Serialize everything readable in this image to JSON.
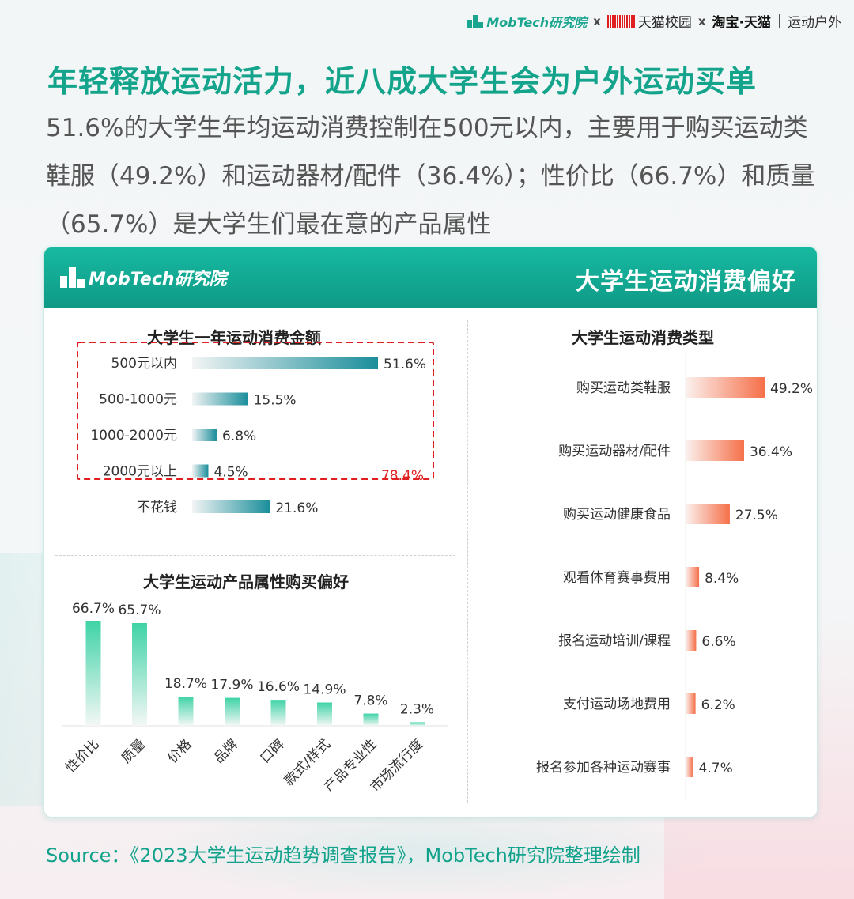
{
  "top_bar": {
    "mobtech": "MobTech研究院",
    "x1": "x",
    "tmall_campus": "天猫校园",
    "x2": "x",
    "taobao_tmall": "淘宝·天猫",
    "outdoor": "运动户外"
  },
  "title": "年轻释放运动活力，近八成大学生会为户外运动买单",
  "subtitle": "51.6%的大学生年均运动消费控制在500元以内，主要用于购买运动类鞋服（49.2%）和运动器材/配件（36.4%）；性价比（66.7%）和质量（65.7%）是大学生们最在意的产品属性",
  "card": {
    "logo": "MobTech研究院",
    "title": "大学生运动消费偏好"
  },
  "colors": {
    "teal": "#1a8e9b",
    "green": "#3fd3a6",
    "orange": "#f5704a",
    "red_highlight": "#e02020",
    "title_green": "#14a48b"
  },
  "chart_data": [
    {
      "type": "bar",
      "orientation": "horizontal",
      "title": "大学生一年运动消费金额",
      "categories": [
        "500元以内",
        "500-1000元",
        "1000-2000元",
        "2000元以上",
        "不花钱"
      ],
      "values": [
        51.6,
        15.5,
        6.8,
        4.5,
        21.6
      ],
      "value_labels": [
        "51.6%",
        "15.5%",
        "6.8%",
        "4.5%",
        "21.6%"
      ],
      "annotation": "78.4%",
      "xlim": [
        0,
        55
      ]
    },
    {
      "type": "bar",
      "orientation": "vertical",
      "title": "大学生运动产品属性购买偏好",
      "categories": [
        "性价比",
        "质量",
        "价格",
        "品牌",
        "口碑",
        "款式/样式",
        "产品专业性",
        "市场流行度"
      ],
      "values": [
        66.7,
        65.7,
        18.7,
        17.9,
        16.6,
        14.9,
        7.8,
        2.3
      ],
      "value_labels": [
        "66.7%",
        "65.7%",
        "18.7%",
        "17.9%",
        "16.6%",
        "14.9%",
        "7.8%",
        "2.3%"
      ],
      "ylim": [
        0,
        70
      ]
    },
    {
      "type": "bar",
      "orientation": "horizontal",
      "title": "大学生运动消费类型",
      "categories": [
        "购买运动类鞋服",
        "购买运动器材/配件",
        "购买运动健康食品",
        "观看体育赛事费用",
        "报名运动培训/课程",
        "支付运动场地费用",
        "报名参加各种运动赛事"
      ],
      "values": [
        49.2,
        36.4,
        27.5,
        8.4,
        6.6,
        6.2,
        4.7
      ],
      "value_labels": [
        "49.2%",
        "36.4%",
        "27.5%",
        "8.4%",
        "6.6%",
        "6.2%",
        "4.7%"
      ],
      "xlim": [
        0,
        50
      ]
    }
  ],
  "source": "Source：《2023大学生运动趋势调查报告》，MobTech研究院整理绘制"
}
